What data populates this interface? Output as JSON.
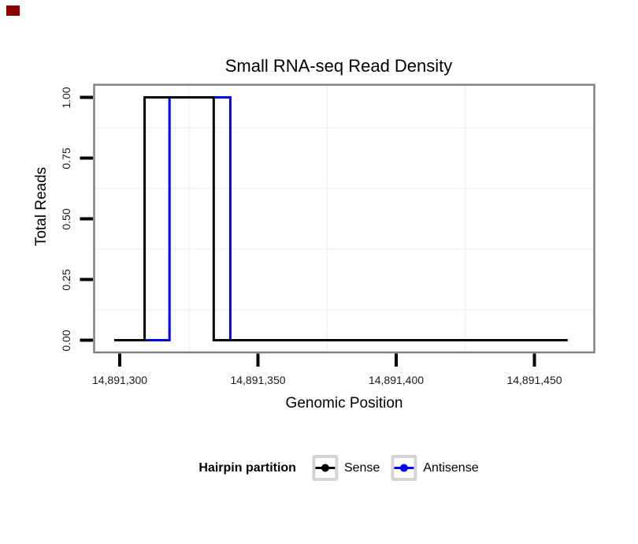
{
  "chart_data": {
    "type": "line",
    "subtype": "step",
    "title": "Small RNA-seq Read Density",
    "xlabel": "Genomic Position",
    "ylabel": "Total Reads",
    "xlim": [
      14891290,
      14891471
    ],
    "ylim": [
      -0.05,
      1.05
    ],
    "grid": "minor-only",
    "legend_position": "bottom",
    "x_ticks": {
      "values": [
        14891300,
        14891350,
        14891400,
        14891450
      ],
      "labels": [
        "14,891,300",
        "14,891,350",
        "14,891,400",
        "14,891,450"
      ]
    },
    "y_ticks": {
      "values": [
        0,
        0.25,
        0.5,
        0.75,
        1
      ],
      "labels": [
        "0.00",
        "0.25",
        "0.50",
        "0.75",
        "1.00"
      ]
    },
    "series": [
      {
        "name": "Sense",
        "color": "#000000",
        "vertices": [
          [
            14891298,
            0
          ],
          [
            14891309,
            0
          ],
          [
            14891309,
            1
          ],
          [
            14891334,
            1
          ],
          [
            14891334,
            0
          ],
          [
            14891462,
            0
          ]
        ]
      },
      {
        "name": "Antisense",
        "color": "#0000ee",
        "vertices": [
          [
            14891298,
            0
          ],
          [
            14891318,
            0
          ],
          [
            14891318,
            1
          ],
          [
            14891340,
            1
          ],
          [
            14891340,
            0
          ],
          [
            14891462,
            0
          ]
        ]
      }
    ]
  },
  "legend": {
    "title": "Hairpin partition",
    "items": [
      {
        "label": "Sense",
        "color": "#000000"
      },
      {
        "label": "Antisense",
        "color": "#0000ee"
      }
    ]
  },
  "style": {
    "background": "#ffffff",
    "panel_border": "#808080",
    "grid_minor": "#f2f2f2",
    "tick_color": "#000000",
    "text_color": "#1a1a1a",
    "legend_key_border": "#d4d4d4",
    "marker_color": "#8b0000"
  }
}
